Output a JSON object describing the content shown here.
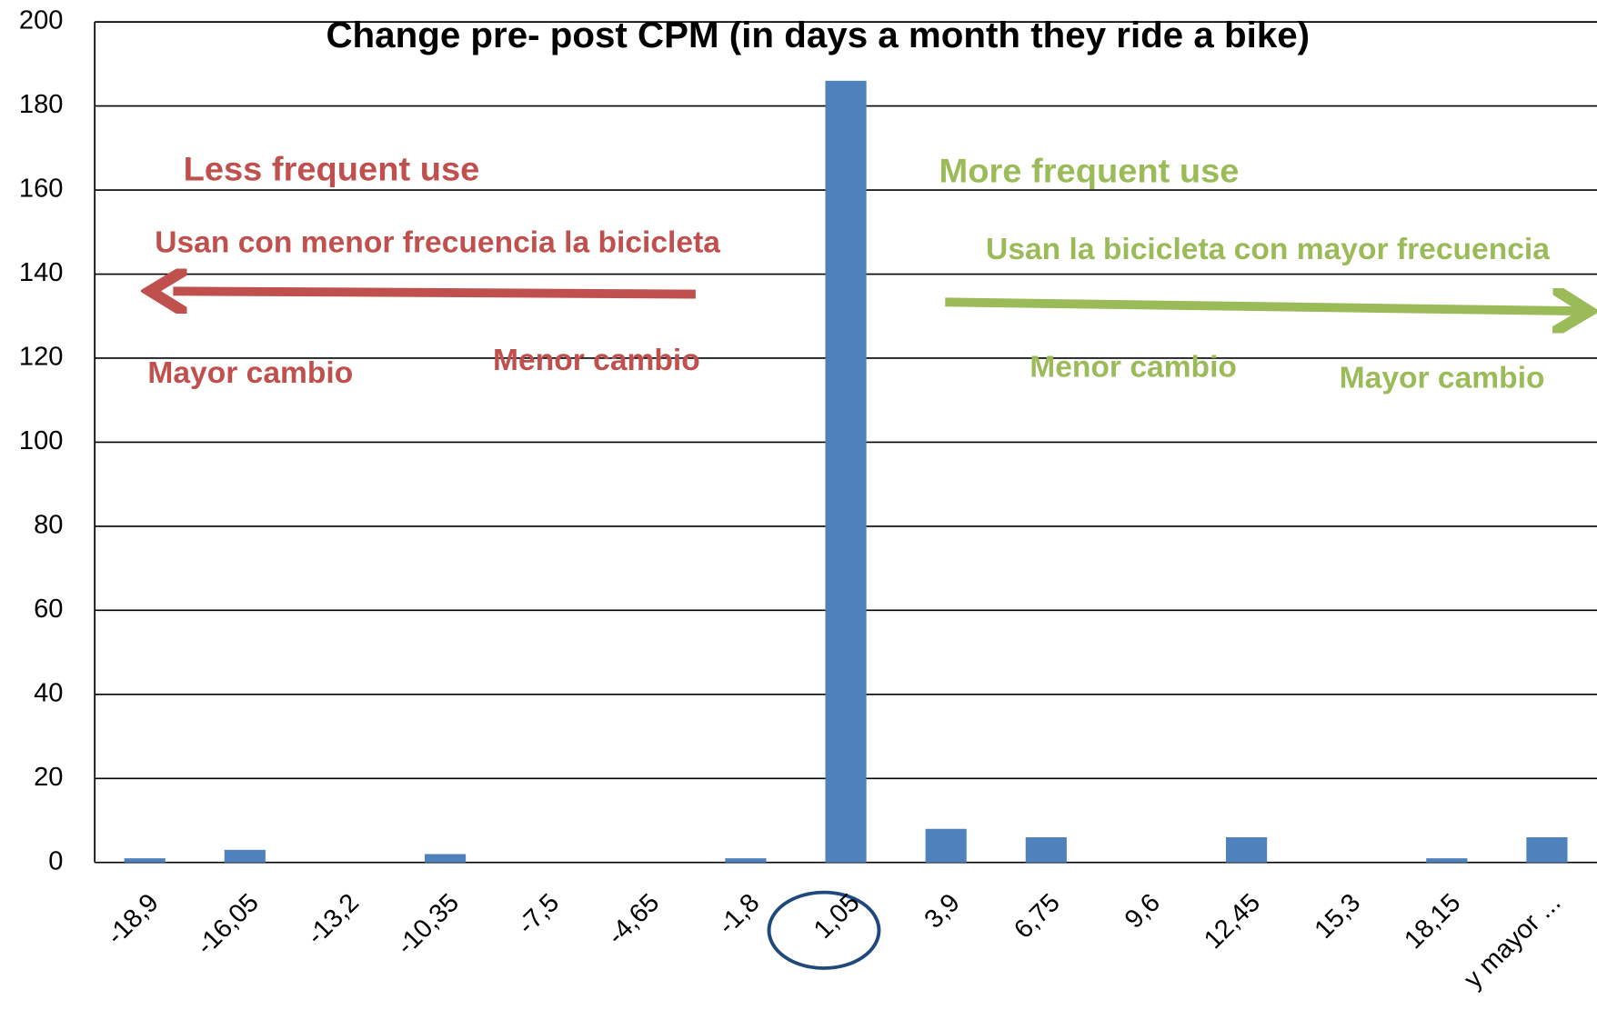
{
  "chart_data": {
    "type": "bar",
    "title": "Change pre- post CPM (in days a month they ride a bike)",
    "categories": [
      "-18,9",
      "-16,05",
      "-13,2",
      "-10,35",
      "-7,5",
      "-4,65",
      "-1,8",
      "1,05",
      "3,9",
      "6,75",
      "9,6",
      "12,45",
      "15,3",
      "18,15",
      "y mayor ..."
    ],
    "values": [
      1,
      3,
      0,
      2,
      0,
      0,
      1,
      186,
      8,
      6,
      0,
      6,
      0,
      1,
      6
    ],
    "color": "#4f81bd",
    "ylim": [
      0,
      200
    ],
    "yticks": [
      0,
      20,
      40,
      60,
      80,
      100,
      120,
      140,
      160,
      180,
      200
    ],
    "grid": true,
    "annotations": [
      {
        "text": "Less frequent use"
      },
      {
        "text": "Usan con menor frecuencia la bicicleta"
      },
      {
        "text": "Mayor cambio"
      },
      {
        "text": "Menor cambio"
      },
      {
        "text": "More frequent use"
      },
      {
        "text": "Usan la bicicleta con mayor frecuencia"
      },
      {
        "text": "Menor cambio"
      },
      {
        "text": "Mayor cambio"
      }
    ]
  }
}
